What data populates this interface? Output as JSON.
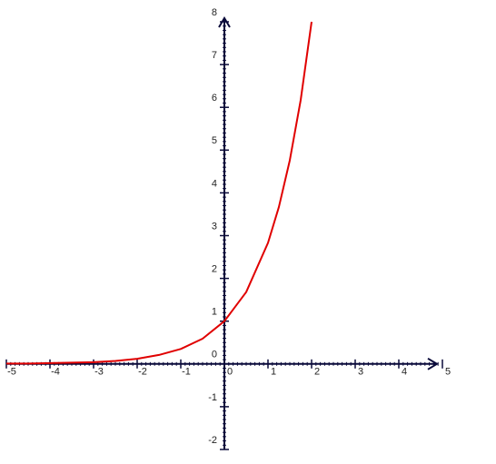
{
  "chart_data": {
    "type": "line",
    "x": [
      -5,
      -4.5,
      -4,
      -3.5,
      -3,
      -2.5,
      -2,
      -1.5,
      -1,
      -0.5,
      0,
      0.5,
      1,
      1.25,
      1.5,
      1.75,
      2
    ],
    "series": [
      {
        "color": "#e00000",
        "values": [
          0.01,
          0.01,
          0.02,
          0.03,
          0.04,
          0.07,
          0.12,
          0.21,
          0.35,
          0.59,
          1,
          1.68,
          2.83,
          3.67,
          4.76,
          6.17,
          8
        ]
      }
    ],
    "xlim": [
      -5,
      5
    ],
    "ylim": [
      -2,
      8
    ],
    "xticks": [
      -5,
      -4,
      -3,
      -2,
      -1,
      0,
      1,
      2,
      3,
      4,
      5
    ],
    "yticks": [
      -2,
      -1,
      0,
      1,
      2,
      3,
      4,
      5,
      6,
      7,
      8
    ]
  }
}
